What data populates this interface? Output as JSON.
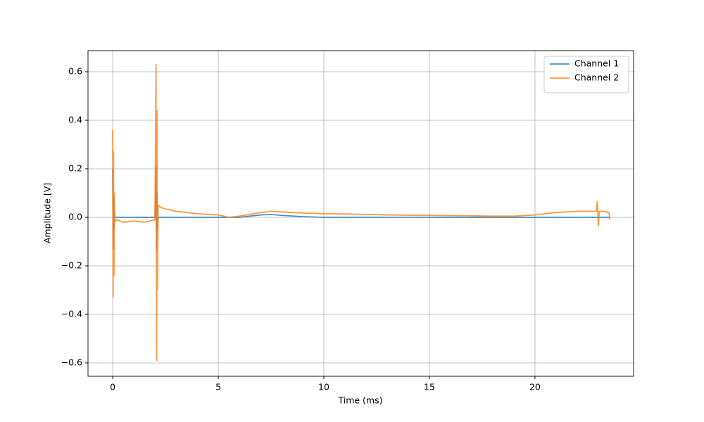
{
  "chart_data": {
    "type": "line",
    "x_label": "Time (ms)",
    "y_label": "Amplitude [V]",
    "x": [
      0,
      0.02,
      0.04,
      0.06,
      0.08,
      0.1,
      0.2,
      0.5,
      1,
      1.5,
      2,
      2.05,
      2.08,
      2.1,
      2.12,
      2.15,
      2.3,
      2.5,
      3,
      4,
      5,
      5.5,
      6,
      7,
      7.5,
      8,
      9,
      10,
      11,
      12,
      13,
      14,
      15,
      16,
      17,
      18,
      19,
      20,
      21,
      22,
      22.9,
      22.95,
      23,
      23.05,
      23.2,
      23.5,
      23.55
    ],
    "series": [
      {
        "name": "Channel 1",
        "color": "#1f77b4",
        "values": [
          0.2,
          -0.13,
          0.08,
          -0.05,
          0.02,
          0,
          0,
          0,
          0,
          0,
          0,
          0.21,
          -0.13,
          0.1,
          -0.05,
          0,
          0,
          0,
          0,
          0,
          0,
          0,
          0,
          0.01,
          0.012,
          0.008,
          0.003,
          0,
          0,
          0,
          0,
          0,
          0,
          0,
          0,
          0,
          0,
          0,
          0,
          0,
          0,
          0,
          0,
          0,
          0,
          0,
          0
        ]
      },
      {
        "name": "Channel 2",
        "color": "#ff7f0e",
        "values": [
          0.36,
          -0.33,
          0.27,
          -0.24,
          0.1,
          -0.02,
          -0.01,
          -0.02,
          -0.015,
          -0.02,
          -0.01,
          0.63,
          -0.59,
          0.44,
          -0.3,
          0.05,
          0.04,
          0.035,
          0.025,
          0.015,
          0.01,
          0.0,
          0.005,
          0.02,
          0.025,
          0.022,
          0.018,
          0.015,
          0.014,
          0.012,
          0.01,
          0.009,
          0.008,
          0.007,
          0.006,
          0.005,
          0.005,
          0.01,
          0.02,
          0.025,
          0.025,
          0.065,
          -0.035,
          0.025,
          0.025,
          0.02,
          -0.01
        ]
      }
    ],
    "xlim": [
      -1.17,
      24.67
    ],
    "ylim": [
      -0.655,
      0.687
    ],
    "xticks": [
      0,
      5,
      10,
      15,
      20
    ],
    "yticks": [
      {
        "value": -0.6,
        "label": "−0.6"
      },
      {
        "value": -0.4,
        "label": "−0.4"
      },
      {
        "value": -0.2,
        "label": "−0.2"
      },
      {
        "value": 0,
        "label": "0.0"
      },
      0.2,
      0.4,
      0.6
    ],
    "grid": true,
    "legend": "upper-right"
  }
}
